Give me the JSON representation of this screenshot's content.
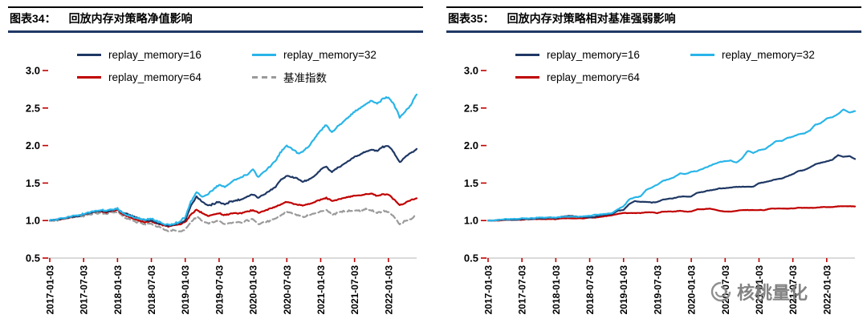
{
  "page": {
    "background": "#ffffff"
  },
  "watermark": {
    "text": "核桃量化"
  },
  "chart_data": [
    {
      "type": "line",
      "fig_label": "图表34：",
      "title": "回放内存对策略净值影响",
      "grid": false,
      "legend_position": "top",
      "ylim": [
        0.5,
        3.0
      ],
      "y_ticks": [
        0.5,
        1.0,
        1.5,
        2.0,
        2.5,
        3.0
      ],
      "tick_color": "#c00000",
      "axis_color": "#b5b5b5",
      "x_tick_labels": [
        "2017-01-03",
        "2017-07-03",
        "2018-01-03",
        "2018-07-03",
        "2019-01-03",
        "2019-07-03",
        "2020-01-03",
        "2020-07-03",
        "2021-01-03",
        "2021-07-03",
        "2022-01-03"
      ],
      "x_tick_indices": [
        0,
        6,
        12,
        18,
        24,
        30,
        36,
        42,
        48,
        54,
        60
      ],
      "legend_rows": [
        [
          0,
          1
        ],
        [
          2,
          3
        ]
      ],
      "draw_order": [
        3,
        2,
        0,
        1
      ],
      "series": [
        {
          "name": "replay_memory=16",
          "color": "#1f3864",
          "dash": false,
          "noise": 0.013,
          "values": [
            1.0,
            1.01,
            1.02,
            1.04,
            1.05,
            1.06,
            1.08,
            1.1,
            1.12,
            1.13,
            1.12,
            1.14,
            1.15,
            1.1,
            1.08,
            1.05,
            1.02,
            1.0,
            1.0,
            0.97,
            0.95,
            0.93,
            0.95,
            0.96,
            1.0,
            1.2,
            1.32,
            1.25,
            1.2,
            1.22,
            1.25,
            1.22,
            1.25,
            1.27,
            1.28,
            1.32,
            1.35,
            1.3,
            1.35,
            1.4,
            1.45,
            1.55,
            1.6,
            1.58,
            1.55,
            1.52,
            1.55,
            1.6,
            1.68,
            1.72,
            1.65,
            1.7,
            1.75,
            1.8,
            1.85,
            1.88,
            1.92,
            1.95,
            1.93,
            1.98,
            2.0,
            1.9,
            1.78,
            1.85,
            1.9,
            1.95
          ]
        },
        {
          "name": "replay_memory=32",
          "color": "#29b5e8",
          "dash": false,
          "noise": 0.015,
          "values": [
            1.0,
            1.01,
            1.03,
            1.04,
            1.06,
            1.07,
            1.09,
            1.11,
            1.13,
            1.14,
            1.13,
            1.15,
            1.16,
            1.1,
            1.07,
            1.04,
            1.02,
            1.01,
            1.02,
            0.99,
            0.96,
            0.94,
            0.96,
            0.98,
            1.05,
            1.25,
            1.38,
            1.32,
            1.35,
            1.42,
            1.48,
            1.45,
            1.5,
            1.55,
            1.58,
            1.62,
            1.68,
            1.58,
            1.65,
            1.72,
            1.8,
            1.92,
            2.0,
            1.95,
            1.9,
            1.93,
            2.0,
            2.1,
            2.2,
            2.28,
            2.18,
            2.25,
            2.32,
            2.38,
            2.45,
            2.5,
            2.55,
            2.6,
            2.55,
            2.62,
            2.65,
            2.55,
            2.38,
            2.45,
            2.55,
            2.68
          ]
        },
        {
          "name": "replay_memory=64",
          "color": "#c00000",
          "dash": false,
          "noise": 0.01,
          "values": [
            1.0,
            1.01,
            1.02,
            1.03,
            1.05,
            1.06,
            1.08,
            1.1,
            1.12,
            1.12,
            1.11,
            1.13,
            1.14,
            1.08,
            1.05,
            1.02,
            1.0,
            0.98,
            0.99,
            0.96,
            0.94,
            0.92,
            0.94,
            0.95,
            0.98,
            1.08,
            1.15,
            1.1,
            1.06,
            1.08,
            1.1,
            1.07,
            1.09,
            1.1,
            1.1,
            1.12,
            1.14,
            1.1,
            1.13,
            1.16,
            1.18,
            1.22,
            1.25,
            1.23,
            1.21,
            1.2,
            1.22,
            1.25,
            1.28,
            1.3,
            1.26,
            1.28,
            1.3,
            1.32,
            1.33,
            1.34,
            1.35,
            1.36,
            1.33,
            1.35,
            1.35,
            1.28,
            1.2,
            1.24,
            1.27,
            1.3
          ]
        },
        {
          "name": "基准指数",
          "color": "#9a9a9a",
          "dash": true,
          "noise": 0.013,
          "values": [
            1.0,
            1.0,
            1.02,
            1.03,
            1.04,
            1.05,
            1.06,
            1.08,
            1.1,
            1.1,
            1.09,
            1.11,
            1.12,
            1.05,
            1.02,
            0.99,
            0.97,
            0.95,
            0.96,
            0.92,
            0.89,
            0.86,
            0.87,
            0.85,
            0.88,
            0.98,
            1.05,
            1.0,
            0.96,
            0.98,
            1.0,
            0.95,
            0.97,
            0.98,
            0.97,
            1.0,
            1.02,
            0.95,
            0.98,
            1.0,
            1.03,
            1.08,
            1.12,
            1.1,
            1.07,
            1.05,
            1.07,
            1.1,
            1.12,
            1.14,
            1.08,
            1.1,
            1.12,
            1.13,
            1.14,
            1.13,
            1.15,
            1.14,
            1.1,
            1.12,
            1.12,
            1.05,
            0.95,
            1.0,
            1.02,
            1.07
          ]
        }
      ]
    },
    {
      "type": "line",
      "fig_label": "图表35：",
      "title": "回放内存对策略相对基准强弱影响",
      "grid": false,
      "legend_position": "top",
      "ylim": [
        0.5,
        3.0
      ],
      "y_ticks": [
        0.5,
        1.0,
        1.5,
        2.0,
        2.5,
        3.0
      ],
      "tick_color": "#c00000",
      "axis_color": "#b5b5b5",
      "x_tick_labels": [
        "2017-01-03",
        "2017-07-03",
        "2018-01-03",
        "2018-07-03",
        "2019-01-03",
        "2019-07-03",
        "2020-01-03",
        "2020-07-03",
        "2021-01-03",
        "2021-07-03",
        "2022-01-03"
      ],
      "x_tick_indices": [
        0,
        6,
        12,
        18,
        24,
        30,
        36,
        42,
        48,
        54,
        60
      ],
      "legend_rows": [
        [
          0,
          1
        ],
        [
          2
        ]
      ],
      "draw_order": [
        2,
        0,
        1
      ],
      "series": [
        {
          "name": "replay_memory=16",
          "color": "#1f3864",
          "dash": false,
          "noise": 0.004,
          "values": [
            1.0,
            1.0,
            1.01,
            1.01,
            1.01,
            1.01,
            1.02,
            1.02,
            1.02,
            1.03,
            1.03,
            1.04,
            1.03,
            1.05,
            1.06,
            1.06,
            1.05,
            1.05,
            1.04,
            1.05,
            1.07,
            1.08,
            1.09,
            1.13,
            1.14,
            1.22,
            1.26,
            1.25,
            1.25,
            1.24,
            1.25,
            1.28,
            1.29,
            1.3,
            1.32,
            1.32,
            1.32,
            1.37,
            1.38,
            1.4,
            1.41,
            1.43,
            1.43,
            1.44,
            1.45,
            1.45,
            1.45,
            1.45,
            1.5,
            1.51,
            1.53,
            1.55,
            1.56,
            1.59,
            1.62,
            1.66,
            1.67,
            1.71,
            1.75,
            1.77,
            1.79,
            1.81,
            1.87,
            1.85,
            1.86,
            1.82
          ]
        },
        {
          "name": "replay_memory=32",
          "color": "#29b5e8",
          "dash": false,
          "noise": 0.005,
          "values": [
            1.0,
            1.0,
            1.01,
            1.02,
            1.02,
            1.02,
            1.03,
            1.03,
            1.03,
            1.04,
            1.04,
            1.04,
            1.04,
            1.05,
            1.05,
            1.05,
            1.05,
            1.06,
            1.06,
            1.08,
            1.08,
            1.09,
            1.1,
            1.15,
            1.19,
            1.28,
            1.31,
            1.32,
            1.41,
            1.44,
            1.48,
            1.53,
            1.55,
            1.58,
            1.63,
            1.62,
            1.65,
            1.66,
            1.69,
            1.72,
            1.75,
            1.78,
            1.79,
            1.8,
            1.77,
            1.83,
            1.93,
            1.9,
            1.94,
            1.95,
            2.0,
            2.06,
            2.06,
            2.1,
            2.12,
            2.15,
            2.16,
            2.2,
            2.28,
            2.3,
            2.36,
            2.38,
            2.42,
            2.48,
            2.44,
            2.46
          ]
        },
        {
          "name": "replay_memory=64",
          "color": "#c00000",
          "dash": false,
          "noise": 0.003,
          "values": [
            1.0,
            1.0,
            1.0,
            1.01,
            1.01,
            1.01,
            1.01,
            1.02,
            1.02,
            1.02,
            1.02,
            1.02,
            1.02,
            1.03,
            1.03,
            1.03,
            1.03,
            1.03,
            1.04,
            1.04,
            1.05,
            1.06,
            1.07,
            1.09,
            1.1,
            1.1,
            1.1,
            1.1,
            1.11,
            1.11,
            1.1,
            1.12,
            1.12,
            1.12,
            1.13,
            1.12,
            1.12,
            1.15,
            1.15,
            1.16,
            1.15,
            1.13,
            1.12,
            1.12,
            1.13,
            1.14,
            1.14,
            1.14,
            1.14,
            1.14,
            1.16,
            1.16,
            1.16,
            1.16,
            1.16,
            1.17,
            1.17,
            1.17,
            1.17,
            1.18,
            1.18,
            1.18,
            1.19,
            1.19,
            1.19,
            1.19
          ]
        }
      ]
    }
  ]
}
